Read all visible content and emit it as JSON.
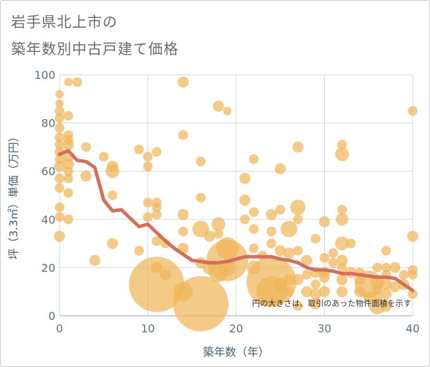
{
  "title_line1": "岩手県北上市の",
  "title_line2": "築年数別中古戸建て価格",
  "chart_data": {
    "type": "scatter",
    "xlabel": "築年数（年）",
    "ylabel": "坪（3.3㎡）単価（万円）",
    "xlim": [
      0,
      40
    ],
    "ylim": [
      0,
      100
    ],
    "x_ticks": [
      "0",
      "10",
      "20",
      "30",
      "40"
    ],
    "y_ticks": [
      "0",
      "20",
      "40",
      "60",
      "80",
      "100"
    ],
    "grid": true,
    "annotation": "円の大きさは、取引のあった物件面積を示す",
    "colors": {
      "bubble": "#f0b55a",
      "trend": "#d4705a"
    },
    "bubble_series": [
      [
        0,
        92,
        6
      ],
      [
        0,
        88,
        6
      ],
      [
        0,
        85,
        7
      ],
      [
        0,
        82,
        7
      ],
      [
        0,
        78,
        7
      ],
      [
        0,
        74,
        7
      ],
      [
        0,
        71,
        7
      ],
      [
        0,
        68,
        7
      ],
      [
        0,
        65,
        7
      ],
      [
        0,
        62,
        8
      ],
      [
        0,
        57,
        7
      ],
      [
        0,
        53,
        7
      ],
      [
        0,
        45,
        7
      ],
      [
        0,
        41,
        7
      ],
      [
        0,
        33,
        8
      ],
      [
        1,
        97,
        6
      ],
      [
        1,
        83,
        7
      ],
      [
        1,
        75,
        7
      ],
      [
        1,
        73,
        7
      ],
      [
        1,
        71,
        8
      ],
      [
        1,
        66,
        8
      ],
      [
        1,
        63,
        8
      ],
      [
        1,
        60,
        7
      ],
      [
        1,
        57,
        7
      ],
      [
        1,
        51,
        7
      ],
      [
        1,
        40,
        7
      ],
      [
        2,
        97,
        7
      ],
      [
        3,
        70,
        7
      ],
      [
        3,
        58,
        8
      ],
      [
        4,
        23,
        8
      ],
      [
        5,
        66,
        7
      ],
      [
        6,
        62,
        8
      ],
      [
        6,
        60,
        10
      ],
      [
        6,
        50,
        7
      ],
      [
        6,
        30,
        8
      ],
      [
        9,
        69,
        7
      ],
      [
        9,
        27,
        7
      ],
      [
        10,
        66,
        7
      ],
      [
        10,
        62,
        7
      ],
      [
        10,
        47,
        7
      ],
      [
        10,
        41,
        7
      ],
      [
        11,
        68,
        7
      ],
      [
        11,
        47,
        7
      ],
      [
        11,
        45,
        7
      ],
      [
        11,
        42,
        7
      ],
      [
        11,
        31,
        7
      ],
      [
        11,
        13,
        40
      ],
      [
        11,
        20,
        8
      ],
      [
        12,
        17,
        8
      ],
      [
        12,
        30,
        7
      ],
      [
        14,
        97,
        8
      ],
      [
        14,
        75,
        7
      ],
      [
        14,
        42,
        8
      ],
      [
        14,
        35,
        7
      ],
      [
        14,
        28,
        8
      ],
      [
        14,
        10,
        14
      ],
      [
        16,
        64,
        7
      ],
      [
        16,
        49,
        7
      ],
      [
        16,
        36,
        12
      ],
      [
        16,
        22,
        8
      ],
      [
        16,
        5,
        40
      ],
      [
        17,
        33,
        8
      ],
      [
        17,
        20,
        10
      ],
      [
        18,
        87,
        8
      ],
      [
        18,
        38,
        10
      ],
      [
        18,
        34,
        7
      ],
      [
        18,
        18,
        14
      ],
      [
        19,
        85,
        6
      ],
      [
        19,
        28,
        16
      ],
      [
        19,
        23,
        30
      ],
      [
        19,
        20,
        12
      ],
      [
        21,
        57,
        8
      ],
      [
        21,
        48,
        8
      ],
      [
        21,
        40,
        7
      ],
      [
        22,
        65,
        7
      ],
      [
        22,
        43,
        7
      ],
      [
        22,
        36,
        7
      ],
      [
        22,
        28,
        7
      ],
      [
        22,
        20,
        10
      ],
      [
        23,
        25,
        7
      ],
      [
        24,
        42,
        8
      ],
      [
        24,
        35,
        7
      ],
      [
        24,
        30,
        7
      ],
      [
        24,
        14,
        36
      ],
      [
        24,
        10,
        22
      ],
      [
        25,
        61,
        8
      ],
      [
        25,
        44,
        7
      ],
      [
        25,
        27,
        8
      ],
      [
        25,
        13,
        10
      ],
      [
        26,
        36,
        12
      ],
      [
        26,
        26,
        8
      ],
      [
        26,
        15,
        8
      ],
      [
        26,
        10,
        7
      ],
      [
        27,
        70,
        8
      ],
      [
        27,
        45,
        11
      ],
      [
        27,
        40,
        7
      ],
      [
        27,
        27,
        7
      ],
      [
        27,
        15,
        8
      ],
      [
        27,
        4,
        7
      ],
      [
        28,
        23,
        8
      ],
      [
        28,
        17,
        7
      ],
      [
        28,
        10,
        8
      ],
      [
        29,
        32,
        7
      ],
      [
        29,
        18,
        8
      ],
      [
        29,
        13,
        7
      ],
      [
        29,
        9,
        8
      ],
      [
        29,
        5,
        8
      ],
      [
        30,
        39,
        8
      ],
      [
        30,
        24,
        7
      ],
      [
        30,
        18,
        8
      ],
      [
        30,
        16,
        8
      ],
      [
        30,
        10,
        8
      ],
      [
        31,
        26,
        7
      ],
      [
        31,
        22,
        7
      ],
      [
        32,
        71,
        7
      ],
      [
        32,
        67,
        10
      ],
      [
        32,
        44,
        7
      ],
      [
        32,
        40,
        9
      ],
      [
        32,
        30,
        10
      ],
      [
        32,
        23,
        8
      ],
      [
        32,
        20,
        7
      ],
      [
        32,
        15,
        8
      ],
      [
        32,
        10,
        8
      ],
      [
        33,
        30,
        7
      ],
      [
        33,
        18,
        8
      ],
      [
        34,
        18,
        7
      ],
      [
        34,
        15,
        8
      ],
      [
        34,
        10,
        8
      ],
      [
        35,
        13,
        20
      ],
      [
        35,
        8,
        8
      ],
      [
        36,
        20,
        7
      ],
      [
        36,
        14,
        10
      ],
      [
        36,
        11,
        8
      ],
      [
        36,
        8,
        7
      ],
      [
        36,
        4,
        12
      ],
      [
        37,
        27,
        7
      ],
      [
        37,
        20,
        7
      ],
      [
        37,
        17,
        7
      ],
      [
        37,
        13,
        8
      ],
      [
        37,
        9,
        8
      ],
      [
        37,
        4,
        8
      ],
      [
        38,
        20,
        8
      ],
      [
        38,
        12,
        8
      ],
      [
        39,
        17,
        7
      ],
      [
        39,
        13,
        8
      ],
      [
        40,
        85,
        7
      ],
      [
        40,
        33,
        8
      ],
      [
        40,
        19,
        7
      ],
      [
        40,
        17,
        7
      ],
      [
        40,
        9,
        7
      ]
    ],
    "trend_series": [
      [
        0,
        67
      ],
      [
        1,
        68.5
      ],
      [
        2,
        64.5
      ],
      [
        3,
        64
      ],
      [
        4,
        61.5
      ],
      [
        5,
        48
      ],
      [
        6,
        43.5
      ],
      [
        7,
        44
      ],
      [
        8,
        40.5
      ],
      [
        9,
        37
      ],
      [
        10,
        38
      ],
      [
        11,
        34.5
      ],
      [
        12,
        31
      ],
      [
        13,
        28
      ],
      [
        14,
        25.5
      ],
      [
        15,
        23
      ],
      [
        16,
        22.5
      ],
      [
        17,
        22
      ],
      [
        18,
        22
      ],
      [
        19,
        22.5
      ],
      [
        20,
        23.5
      ],
      [
        21,
        24.5
      ],
      [
        22,
        24.5
      ],
      [
        23,
        24.5
      ],
      [
        24,
        24.5
      ],
      [
        25,
        23.5
      ],
      [
        26,
        23
      ],
      [
        27,
        22
      ],
      [
        28,
        20
      ],
      [
        29,
        19
      ],
      [
        30,
        19
      ],
      [
        31,
        18.5
      ],
      [
        32,
        17.5
      ],
      [
        33,
        17.5
      ],
      [
        34,
        17
      ],
      [
        35,
        16.5
      ],
      [
        36,
        16
      ],
      [
        37,
        16
      ],
      [
        38,
        15.5
      ],
      [
        39,
        13
      ],
      [
        40,
        10.5
      ]
    ]
  }
}
